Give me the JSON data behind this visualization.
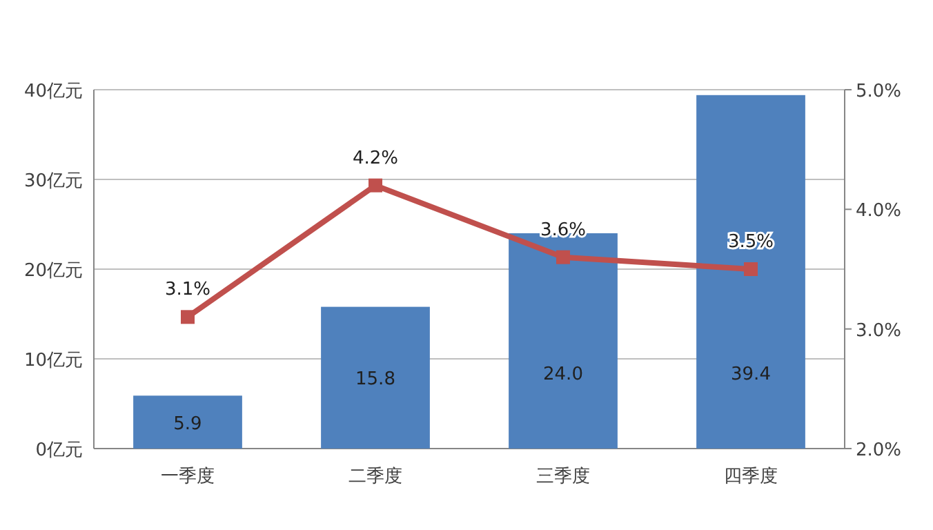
{
  "chart_data": {
    "type": "bar",
    "categories": [
      "一季度",
      "二季度",
      "三季度",
      "四季度"
    ],
    "series": [
      {
        "color": "#4f81bd",
        "values": [
          5.9,
          15.8,
          24.0,
          39.4
        ],
        "value_labels": [
          "5.9",
          "15.8",
          "24.0",
          "39.4"
        ]
      },
      {
        "type": "line",
        "axis": "y2",
        "color": "#c0504d",
        "marker": "square",
        "values": [
          3.1,
          4.2,
          3.6,
          3.5
        ],
        "value_labels": [
          "3.1%",
          "4.2%",
          "3.6%",
          "3.5%"
        ]
      }
    ],
    "ylim": [
      0,
      40
    ],
    "yticks": [
      {
        "value": 0,
        "label": "0亿元"
      },
      {
        "value": 10,
        "label": "10亿元"
      },
      {
        "value": 20,
        "label": "20亿元"
      },
      {
        "value": 30,
        "label": "30亿元"
      },
      {
        "value": 40,
        "label": "40亿元"
      }
    ],
    "y2lim": [
      2,
      5
    ],
    "y2ticks": [
      {
        "value": 2,
        "label": "2.0%"
      },
      {
        "value": 3,
        "label": "3.0%"
      },
      {
        "value": 4,
        "label": "4.0%"
      },
      {
        "value": 5,
        "label": "5.0%"
      }
    ],
    "grid": "y"
  }
}
